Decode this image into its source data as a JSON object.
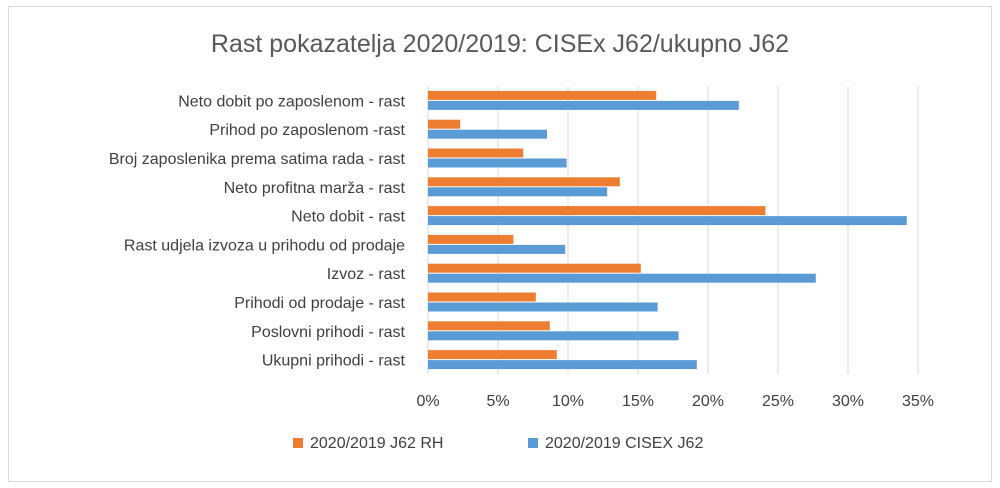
{
  "chart_data": {
    "type": "bar",
    "orientation": "horizontal",
    "title": "Rast pokazatelja 2020/2019: CISEx J62/ukupno J62",
    "xlabel": "",
    "ylabel": "",
    "xlim": [
      0,
      0.35
    ],
    "x_ticks": [
      0,
      0.05,
      0.1,
      0.15,
      0.2,
      0.25,
      0.3,
      0.35
    ],
    "x_tick_labels": [
      "0%",
      "5%",
      "10%",
      "15%",
      "20%",
      "25%",
      "30%",
      "35%"
    ],
    "grid": "vertical",
    "legend_position": "bottom",
    "categories": [
      "Neto dobit po zaposlenom - rast",
      "Prihod po zaposlenom -rast",
      "Broj zaposlenika prema satima rada - rast",
      "Neto profitna marža - rast",
      "Neto dobit - rast",
      "Rast udjela izvoza u prihodu od prodaje",
      "Izvoz - rast",
      "Prihodi od prodaje - rast",
      "Poslovni prihodi - rast",
      "Ukupni prihodi - rast"
    ],
    "series": [
      {
        "name": "2020/2019 J62 RH",
        "color": "#ed7d31",
        "values": [
          0.163,
          0.023,
          0.068,
          0.137,
          0.241,
          0.061,
          0.152,
          0.077,
          0.087,
          0.092
        ]
      },
      {
        "name": "2020/2019 CISEX J62",
        "color": "#5b9bd5",
        "values": [
          0.222,
          0.085,
          0.099,
          0.128,
          0.342,
          0.098,
          0.277,
          0.164,
          0.179,
          0.192
        ]
      }
    ]
  }
}
